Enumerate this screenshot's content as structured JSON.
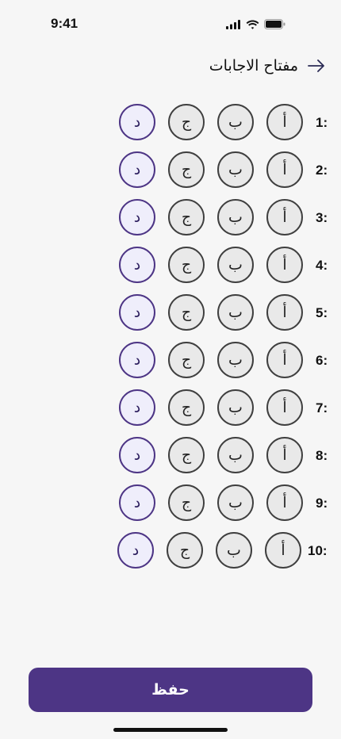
{
  "status_bar": {
    "time": "9:41"
  },
  "header": {
    "title": "مفتاح الاجابات",
    "back_icon": "arrow-right-icon"
  },
  "options": [
    "أ",
    "ب",
    "ج",
    "د"
  ],
  "questions": [
    {
      "number": "1:",
      "selected": "د"
    },
    {
      "number": "2:",
      "selected": "د"
    },
    {
      "number": "3:",
      "selected": "د"
    },
    {
      "number": "4:",
      "selected": "د"
    },
    {
      "number": "5:",
      "selected": "د"
    },
    {
      "number": "6:",
      "selected": "د"
    },
    {
      "number": "7:",
      "selected": "د"
    },
    {
      "number": "8:",
      "selected": "د"
    },
    {
      "number": "9:",
      "selected": "د"
    },
    {
      "number": "10:",
      "selected": "د"
    }
  ],
  "save_button": {
    "label": "حفظ"
  },
  "colors": {
    "accent": "#4d3585",
    "selected_fill": "#efeefb",
    "background": "#f6f6f6"
  }
}
